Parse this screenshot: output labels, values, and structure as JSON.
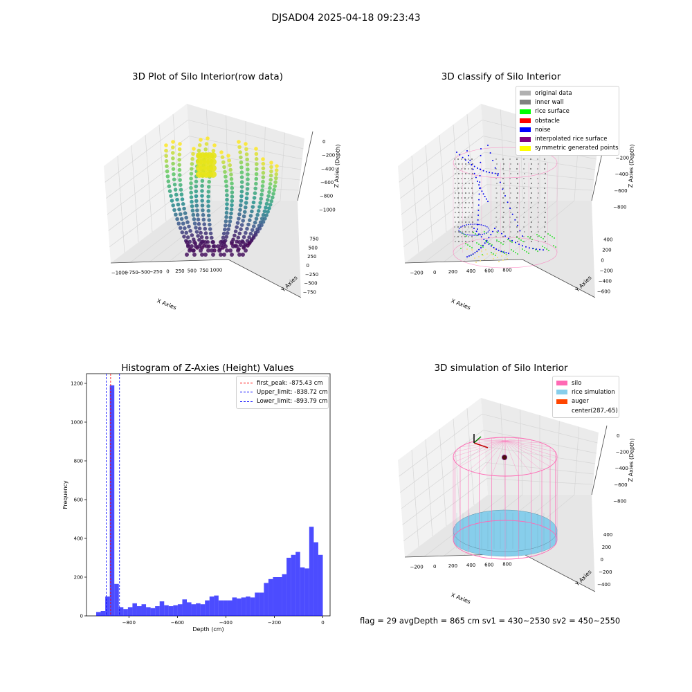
{
  "figure": {
    "suptitle": "DJSAD04 2025-04-18 09:23:43"
  },
  "panels": {
    "raw": {
      "title": "3D Plot of Silo Interior(row data)",
      "xlabel": "X Axies",
      "ylabel": "Y Axies",
      "zlabel": "Z Axies (Depth)",
      "xticks": [
        "−1000",
        "−750",
        "−500",
        "−250",
        "0",
        "250",
        "500",
        "750",
        "1000"
      ],
      "yticks": [
        "750",
        "500",
        "250",
        "0",
        "−250",
        "−500",
        "−750"
      ],
      "zticks": [
        "0",
        "−200",
        "−400",
        "−600",
        "−800",
        "−1000"
      ]
    },
    "classify": {
      "title": "3D classify of Silo Interior",
      "xlabel": "X Axies",
      "ylabel": "Y Axies",
      "zlabel": "Z Axies (Depth)",
      "xticks": [
        "−200",
        "0",
        "200",
        "400",
        "600",
        "800"
      ],
      "yticks": [
        "400",
        "200",
        "0",
        "−200",
        "−400",
        "−600"
      ],
      "zticks": [
        "0",
        "−200",
        "−400",
        "−600",
        "−800"
      ],
      "legend": [
        {
          "label": "original data",
          "color": "#b0b0b0"
        },
        {
          "label": "inner wall",
          "color": "#808080"
        },
        {
          "label": "rice surface",
          "color": "#00ff00"
        },
        {
          "label": "obstacle",
          "color": "#ff0000"
        },
        {
          "label": "noise",
          "color": "#0000ff"
        },
        {
          "label": "interpolated rice surface",
          "color": "#800080"
        },
        {
          "label": "symmetric generated points",
          "color": "#ffff00"
        }
      ]
    },
    "simulation": {
      "title": "3D simulation of Silo Interior",
      "xlabel": "X Axies",
      "ylabel": "Y Axies",
      "zlabel": "Z Axies (Depth)",
      "xticks": [
        "−200",
        "0",
        "200",
        "400",
        "600",
        "800"
      ],
      "yticks": [
        "400",
        "200",
        "0",
        "−200",
        "−400"
      ],
      "zticks": [
        "0",
        "−200",
        "−400",
        "−600",
        "−800"
      ],
      "legend": [
        {
          "label": "silo",
          "color": "#ff69b4"
        },
        {
          "label": "rice simulation",
          "color": "#87ceeb"
        },
        {
          "label": "auger",
          "color": "#ff4500"
        },
        {
          "label": "center(287,-65)",
          "color": ""
        }
      ]
    }
  },
  "footer": {
    "text": "flag = 29  avgDepth = 865 cm  sv1 = 430~2530  sv2 = 450~2550"
  },
  "chart_data": [
    {
      "type": "bar",
      "title": "Histogram of Z-Axies (Height) Values",
      "xlabel": "Depth (cm)",
      "ylabel": "Frequency",
      "xlim": [
        -975,
        30
      ],
      "ylim": [
        0,
        1250
      ],
      "xticks": [
        -800,
        -600,
        -400,
        -200,
        0
      ],
      "yticks": [
        0,
        200,
        400,
        600,
        800,
        1000,
        1200
      ],
      "bar_color": "#0000ff",
      "bar_alpha": 0.7,
      "bins": {
        "start": -935.0,
        "width": 18.7,
        "counts": [
          20,
          25,
          100,
          1190,
          165,
          45,
          35,
          45,
          65,
          50,
          60,
          45,
          40,
          50,
          75,
          55,
          50,
          55,
          60,
          85,
          70,
          60,
          65,
          60,
          80,
          100,
          105,
          80,
          80,
          80,
          95,
          90,
          95,
          100,
          95,
          120,
          120,
          170,
          190,
          200,
          200,
          215,
          300,
          315,
          330,
          250,
          245,
          460,
          380,
          315
        ]
      },
      "vlines": [
        {
          "label": "first_peak: -875.43 cm",
          "x": -875.43,
          "color": "#ff0000"
        },
        {
          "label": "Upper_limit: -838.72 cm",
          "x": -838.72,
          "color": "#0000ff"
        },
        {
          "label": "Lower_limit: -893.79 cm",
          "x": -893.79,
          "color": "#0000ff"
        }
      ],
      "legend_position": "upper right"
    }
  ]
}
